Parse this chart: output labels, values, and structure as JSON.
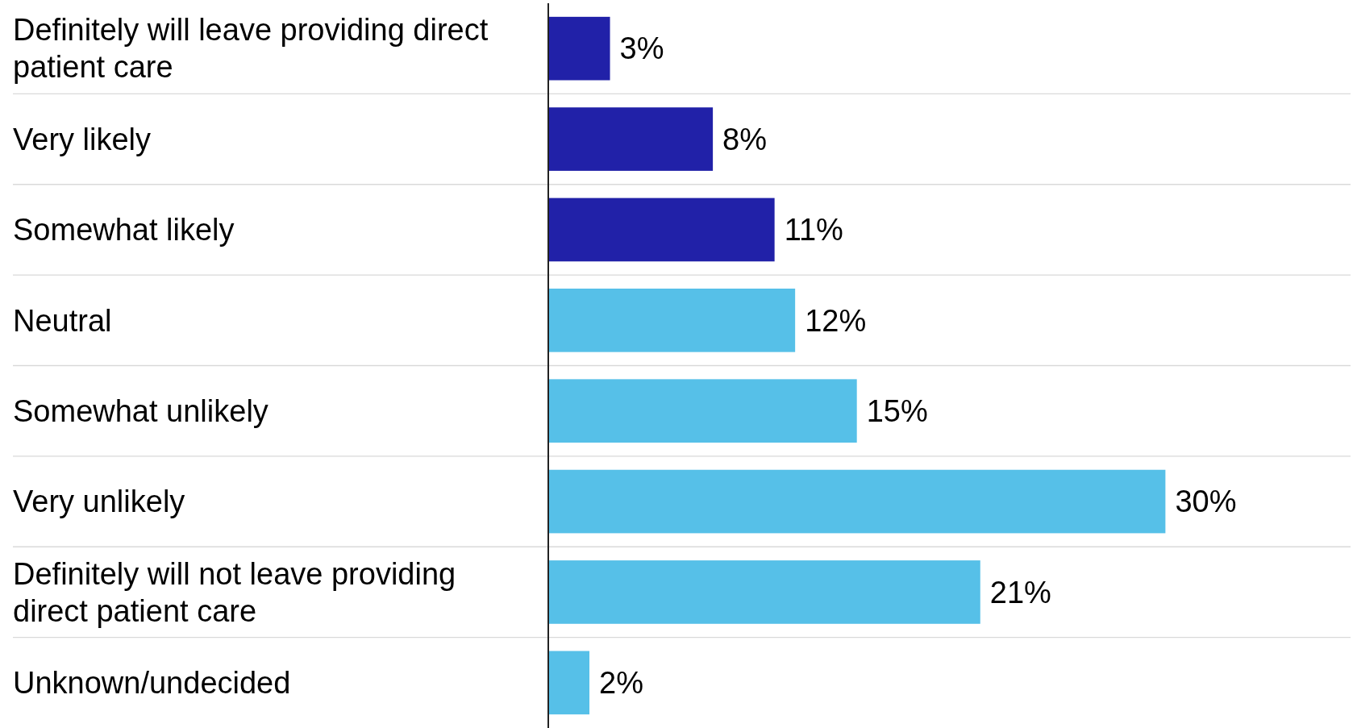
{
  "chart_data": {
    "type": "bar",
    "orientation": "horizontal",
    "categories": [
      "Definitely will leave providing direct patient care",
      "Very likely",
      "Somewhat likely",
      "Neutral",
      "Somewhat unlikely",
      "Very unlikely",
      "Definitely will not leave providing direct patient care",
      "Unknown/undecided"
    ],
    "values": [
      3,
      8,
      11,
      12,
      15,
      30,
      21,
      2
    ],
    "colors": [
      "#2121a8",
      "#2121a8",
      "#2121a8",
      "#56c0e8",
      "#56c0e8",
      "#56c0e8",
      "#56c0e8",
      "#56c0e8"
    ],
    "value_labels": [
      "3%",
      "8%",
      "11%",
      "12%",
      "15%",
      "30%",
      "21%",
      "2%"
    ],
    "xlim": [
      0,
      39
    ],
    "grid": "y",
    "tick_labels": "y"
  }
}
